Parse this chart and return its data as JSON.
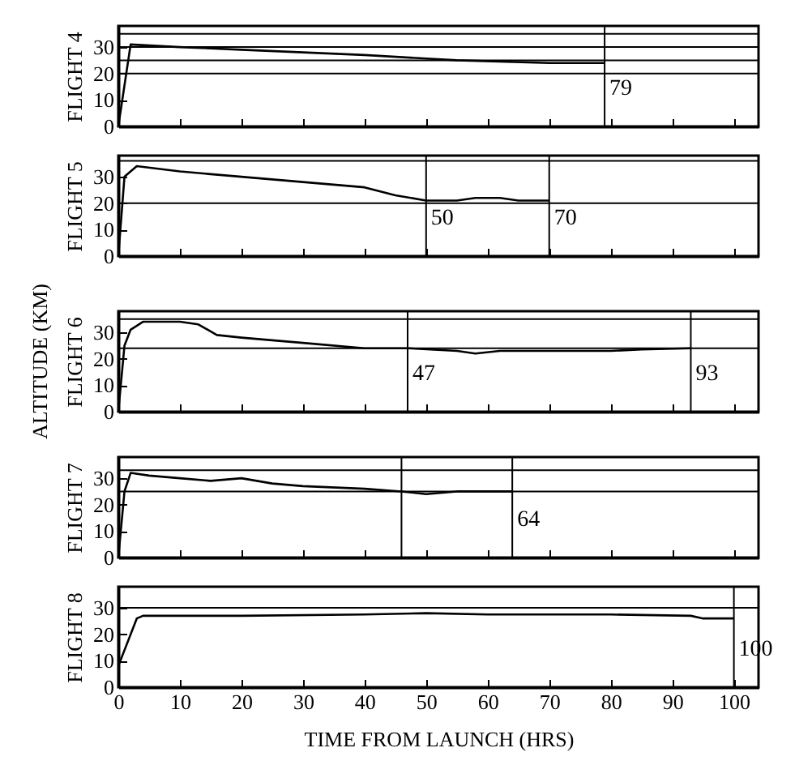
{
  "chart_data": [
    {
      "type": "line",
      "ylabel": "FLIGHT 4",
      "xlim": [
        0,
        104
      ],
      "ylim": [
        0,
        38
      ],
      "xticks": [
        0,
        10,
        20,
        30,
        40,
        50,
        60,
        70,
        80,
        90,
        100
      ],
      "yticks": [
        0,
        10,
        20,
        30
      ],
      "tick_labels": "y",
      "grid": false,
      "series": [
        {
          "color": "#000000",
          "x": [
            0,
            2,
            10,
            20,
            30,
            40,
            55,
            70,
            79
          ],
          "values": [
            0,
            31,
            30,
            29,
            28,
            27,
            25,
            24,
            24
          ]
        }
      ],
      "ref_lines": [
        {
          "axis": "y",
          "value": 35
        },
        {
          "axis": "y",
          "value": 30
        },
        {
          "axis": "y",
          "value": 25
        },
        {
          "axis": "y",
          "value": 20
        },
        {
          "axis": "x",
          "value": 79,
          "label": "79"
        }
      ]
    },
    {
      "type": "line",
      "ylabel": "FLIGHT 5",
      "xlim": [
        0,
        104
      ],
      "ylim": [
        0,
        38
      ],
      "xticks": [
        0,
        10,
        20,
        30,
        40,
        50,
        60,
        70,
        80,
        90,
        100
      ],
      "yticks": [
        0,
        10,
        20,
        30
      ],
      "tick_labels": "y",
      "grid": false,
      "series": [
        {
          "color": "#000000",
          "x": [
            0,
            1,
            3,
            10,
            20,
            30,
            40,
            45,
            50,
            55,
            58,
            62,
            65,
            70
          ],
          "values": [
            0,
            30,
            34,
            32,
            30,
            28,
            26,
            23,
            21,
            21,
            22,
            22,
            21,
            21
          ]
        }
      ],
      "ref_lines": [
        {
          "axis": "y",
          "value": 36
        },
        {
          "axis": "y",
          "value": 20
        },
        {
          "axis": "x",
          "value": 50,
          "label": "50"
        },
        {
          "axis": "x",
          "value": 70,
          "label": "70"
        }
      ]
    },
    {
      "type": "line",
      "ylabel": "FLIGHT 6",
      "xlim": [
        0,
        104
      ],
      "ylim": [
        0,
        38
      ],
      "xticks": [
        0,
        10,
        20,
        30,
        40,
        50,
        60,
        70,
        80,
        90,
        100
      ],
      "yticks": [
        0,
        10,
        20,
        30
      ],
      "tick_labels": "y",
      "grid": false,
      "annotations": [
        "ALTITUDE (KM)"
      ],
      "series": [
        {
          "color": "#000000",
          "x": [
            0,
            1,
            2,
            4,
            10,
            13,
            16,
            20,
            30,
            40,
            47,
            55,
            58,
            62,
            80,
            85,
            93
          ],
          "values": [
            0,
            25,
            31,
            34,
            34,
            33,
            29,
            28,
            26,
            24,
            24,
            23,
            22,
            23,
            23,
            23.5,
            24
          ]
        }
      ],
      "ref_lines": [
        {
          "axis": "y",
          "value": 35
        },
        {
          "axis": "y",
          "value": 24
        },
        {
          "axis": "x",
          "value": 47,
          "label": "47"
        },
        {
          "axis": "x",
          "value": 93,
          "label": "93"
        }
      ]
    },
    {
      "type": "line",
      "ylabel": "FLIGHT 7",
      "xlim": [
        0,
        104
      ],
      "ylim": [
        0,
        38
      ],
      "xticks": [
        0,
        10,
        20,
        30,
        40,
        50,
        60,
        70,
        80,
        90,
        100
      ],
      "yticks": [
        0,
        10,
        20,
        30
      ],
      "tick_labels": "y",
      "grid": false,
      "series": [
        {
          "color": "#000000",
          "x": [
            0,
            1,
            2,
            5,
            10,
            15,
            20,
            25,
            30,
            40,
            46,
            50,
            55,
            60,
            64
          ],
          "values": [
            0,
            25,
            32,
            31,
            30,
            29,
            30,
            28,
            27,
            26,
            25,
            24,
            25,
            25,
            25
          ]
        }
      ],
      "ref_lines": [
        {
          "axis": "y",
          "value": 33
        },
        {
          "axis": "y",
          "value": 25
        },
        {
          "axis": "x",
          "value": 46
        },
        {
          "axis": "x",
          "value": 64,
          "label": "64"
        }
      ]
    },
    {
      "type": "line",
      "ylabel": "FLIGHT 8",
      "xlabel": "TIME FROM LAUNCH (HRS)",
      "xlim": [
        0,
        104
      ],
      "ylim": [
        0,
        38
      ],
      "xticks": [
        0,
        10,
        20,
        30,
        40,
        50,
        60,
        70,
        80,
        90,
        100
      ],
      "yticks": [
        0,
        10,
        20,
        30
      ],
      "grid": false,
      "series": [
        {
          "color": "#000000",
          "x": [
            0,
            3,
            4,
            20,
            40,
            50,
            60,
            80,
            93,
            95,
            100
          ],
          "values": [
            8,
            26,
            27,
            27,
            27.5,
            28,
            27.5,
            27.5,
            27,
            26,
            26
          ]
        }
      ],
      "ref_lines": [
        {
          "axis": "y",
          "value": 30
        },
        {
          "axis": "x",
          "value": 100,
          "label": "100"
        }
      ]
    }
  ]
}
